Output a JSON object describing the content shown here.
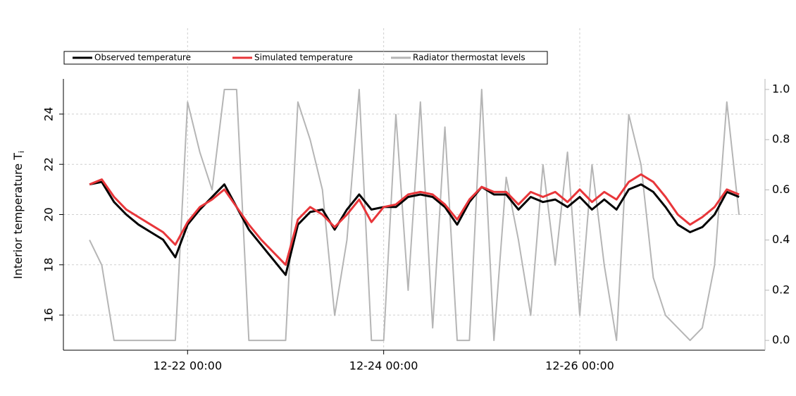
{
  "chart_data": {
    "type": "line",
    "y_label": "Interior temperature T",
    "y_label_subscript": "i",
    "x": [
      "12-21 00:00",
      "12-21 03:00",
      "12-21 06:00",
      "12-21 09:00",
      "12-21 12:00",
      "12-21 15:00",
      "12-21 18:00",
      "12-21 21:00",
      "12-22 00:00",
      "12-22 03:00",
      "12-22 06:00",
      "12-22 09:00",
      "12-22 12:00",
      "12-22 15:00",
      "12-22 18:00",
      "12-22 21:00",
      "12-23 00:00",
      "12-23 03:00",
      "12-23 06:00",
      "12-23 09:00",
      "12-23 12:00",
      "12-23 15:00",
      "12-23 18:00",
      "12-23 21:00",
      "12-24 00:00",
      "12-24 03:00",
      "12-24 06:00",
      "12-24 09:00",
      "12-24 12:00",
      "12-24 15:00",
      "12-24 18:00",
      "12-24 21:00",
      "12-25 00:00",
      "12-25 03:00",
      "12-25 06:00",
      "12-25 09:00",
      "12-25 12:00",
      "12-25 15:00",
      "12-25 18:00",
      "12-25 21:00",
      "12-26 00:00",
      "12-26 03:00",
      "12-26 06:00",
      "12-26 09:00",
      "12-26 12:00",
      "12-26 15:00",
      "12-26 18:00",
      "12-26 21:00",
      "12-27 00:00",
      "12-27 03:00",
      "12-27 06:00",
      "12-27 09:00",
      "12-27 12:00",
      "12-27 15:00"
    ],
    "series": [
      {
        "name": "Radiator thermostat levels",
        "color": "#b5b5b5",
        "axis": "y2",
        "values": [
          0.4,
          0.3,
          0,
          0,
          0,
          0,
          0,
          0,
          0.95,
          0.75,
          0.6,
          1.0,
          1.0,
          0,
          0,
          0,
          0,
          0.95,
          0.8,
          0.6,
          0.1,
          0.4,
          1.0,
          0,
          0,
          0.9,
          0.2,
          0.95,
          0.05,
          0.85,
          0,
          0,
          1.0,
          0,
          0.65,
          0.4,
          0.1,
          0.7,
          0.3,
          0.75,
          0.1,
          0.7,
          0.3,
          0,
          0.9,
          0.7,
          0.25,
          0.1,
          0.05,
          0,
          0.05,
          0.3,
          0.95,
          0.5
        ]
      },
      {
        "name": "Observed temperature",
        "color": "#000000",
        "values": [
          21.2,
          21.3,
          20.5,
          20.0,
          19.6,
          19.3,
          19.0,
          18.3,
          19.6,
          20.2,
          20.7,
          21.2,
          20.3,
          19.4,
          18.8,
          18.2,
          17.6,
          19.6,
          20.1,
          20.2,
          19.4,
          20.2,
          20.8,
          20.2,
          20.3,
          20.3,
          20.7,
          20.8,
          20.7,
          20.3,
          19.6,
          20.5,
          21.1,
          20.8,
          20.8,
          20.2,
          20.7,
          20.5,
          20.6,
          20.3,
          20.7,
          20.2,
          20.6,
          20.2,
          21.0,
          21.2,
          20.9,
          20.3,
          19.6,
          19.3,
          19.5,
          20.0,
          20.9,
          20.7
        ]
      },
      {
        "name": "Simulated temperature",
        "color": "#e8363a",
        "values": [
          21.2,
          21.4,
          20.7,
          20.2,
          19.9,
          19.6,
          19.3,
          18.8,
          19.7,
          20.3,
          20.6,
          21.0,
          20.3,
          19.6,
          19.0,
          18.5,
          18.0,
          19.8,
          20.3,
          20.0,
          19.5,
          20.0,
          20.6,
          19.7,
          20.3,
          20.4,
          20.8,
          20.9,
          20.8,
          20.4,
          19.8,
          20.6,
          21.1,
          20.9,
          20.9,
          20.4,
          20.9,
          20.7,
          20.9,
          20.5,
          21.0,
          20.5,
          20.9,
          20.6,
          21.3,
          21.6,
          21.3,
          20.7,
          20.0,
          19.6,
          19.9,
          20.3,
          21.0,
          20.8
        ]
      }
    ],
    "xlim": [
      "12-20 17:36",
      "12-27 21:21"
    ],
    "xticks": [
      "12-22 00:00",
      "12-24 00:00",
      "12-26 00:00"
    ],
    "ylim": [
      14.6,
      25.4
    ],
    "yticks": [
      16,
      18,
      20,
      22,
      24
    ],
    "y2lim": [
      -0.039,
      1.042
    ],
    "y2ticks": [
      {
        "value": 0,
        "label": "0.0"
      },
      0.2,
      0.4,
      0.6,
      {
        "value": 0.8,
        "label": "0.8"
      },
      {
        "value": 1,
        "label": "1.0"
      }
    ],
    "grid": true,
    "legend": "top"
  }
}
